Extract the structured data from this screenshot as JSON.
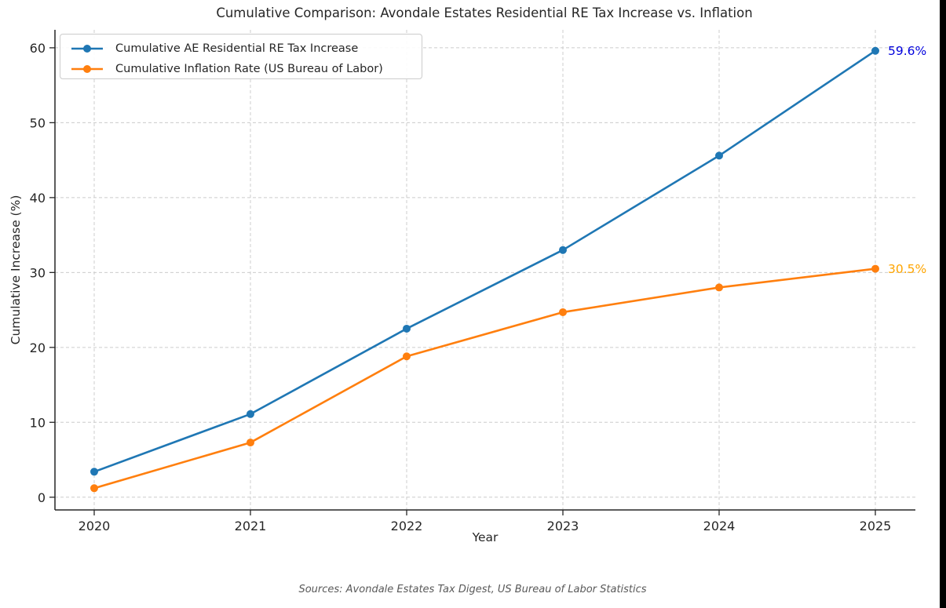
{
  "figure": {
    "background": "#ffffff",
    "right_edge_bar_color": "#000000"
  },
  "chart_data": {
    "type": "line",
    "title": "Cumulative Comparison: Avondale Estates Residential RE Tax Increase vs. Inflation",
    "xlabel": "Year",
    "ylabel": "Cumulative Increase (%)",
    "footer": "Sources: Avondale Estates Tax Digest, US Bureau of Labor Statistics",
    "x": [
      2020,
      2021,
      2022,
      2023,
      2024,
      2025
    ],
    "series": [
      {
        "name": "Cumulative AE Residential RE Tax Increase",
        "color": "#1f77b4",
        "values": [
          3.4,
          11.1,
          22.5,
          33.0,
          45.6,
          59.6
        ],
        "end_label": "59.6%",
        "end_label_color": "#0000dd"
      },
      {
        "name": "Cumulative Inflation Rate (US Bureau of Labor)",
        "color": "#ff7f0e",
        "values": [
          1.2,
          7.3,
          18.8,
          24.7,
          28.0,
          30.5
        ],
        "end_label": "30.5%",
        "end_label_color": "#ffa500"
      }
    ],
    "yticks": [
      0,
      10,
      20,
      30,
      40,
      50,
      60
    ],
    "ylim": [
      -1.7,
      62.4
    ],
    "grid": true,
    "grid_style": "dashed",
    "grid_color": "#cccccc",
    "axis_color": "#262626",
    "legend_position": "upper left",
    "marker": "circle"
  }
}
